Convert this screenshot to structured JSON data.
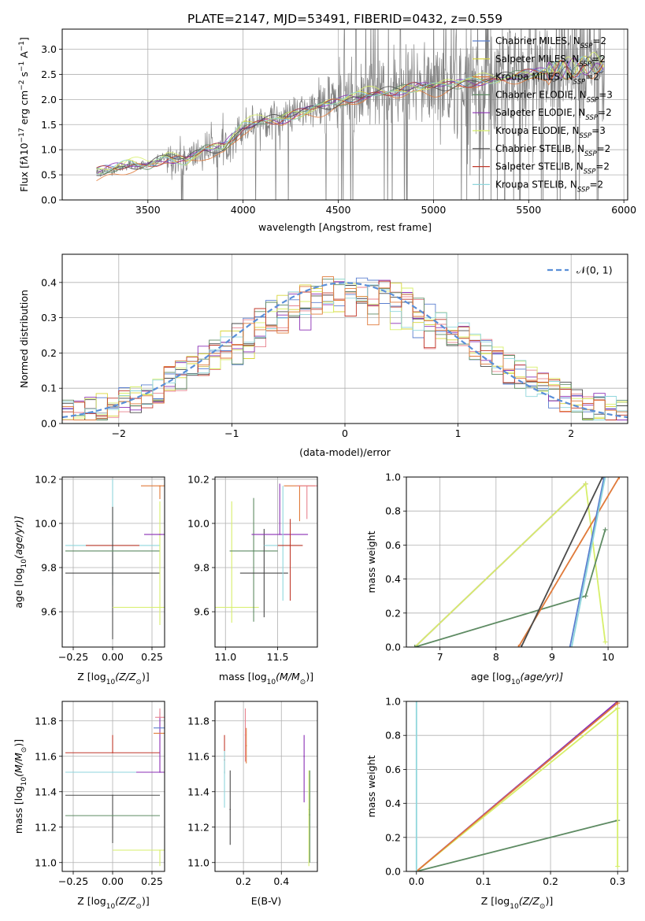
{
  "title": "PLATE=2147, MJD=53491, FIBERID=0432, z=0.559",
  "colors": {
    "c1": "#5a7fcf",
    "c2": "#d8d63a",
    "c3": "#e8838f",
    "c4": "#4a4a4a",
    "c5": "#8b2fb5",
    "c6": "#d7ef6a",
    "c7": "#5e8b63",
    "c8": "#c0392b",
    "c9": "#8fd6dc",
    "c10": "#e07a3a",
    "grey": "#808080"
  },
  "legend_top": [
    {
      "name_main": "Chabrier MILES, N",
      "sub": "SSP",
      "eq": "=2",
      "color": "#5a7fcf"
    },
    {
      "name_main": "Salpeter MILES, N",
      "sub": "SSP",
      "eq": "=2",
      "color": "#d8d63a"
    },
    {
      "name_main": "Kroupa MILES, N",
      "sub": "SSP",
      "eq": "=2",
      "color": "#e07a3a"
    },
    {
      "name_main": "Chabrier ELODIE, N",
      "sub": "SSP",
      "eq": "=3",
      "color": "#5e8b63"
    },
    {
      "name_main": "Salpeter ELODIE, N",
      "sub": "SSP",
      "eq": "=2",
      "color": "#8b2fb5"
    },
    {
      "name_main": "Kroupa ELODIE, N",
      "sub": "SSP",
      "eq": "=3",
      "color": "#d7ef6a"
    },
    {
      "name_main": "Chabrier STELIB, N",
      "sub": "SSP",
      "eq": "=2",
      "color": "#4a4a4a"
    },
    {
      "name_main": "Salpeter STELIB, N",
      "sub": "SSP",
      "eq": "=2",
      "color": "#c0392b"
    },
    {
      "name_main": "Kroupa STELIB, N",
      "sub": "SSP",
      "eq": "=2",
      "color": "#8fd6dc"
    }
  ],
  "legend_hist": {
    "label": "𝒩(0, 1)",
    "color": "#5a8fd8"
  },
  "chart_data": [
    {
      "id": "spectrum",
      "type": "line",
      "xlabel": "wavelength [Angstrom, rest frame]",
      "ylabel_parts": [
        "Flux [f",
        "λ",
        "10",
        "−17",
        " erg cm",
        "−2",
        " s",
        "−1",
        " A",
        "−1",
        "]"
      ],
      "xlim": [
        3050,
        6020
      ],
      "ylim": [
        0,
        3.4
      ],
      "xticks": [
        3500,
        4000,
        4500,
        5000,
        5500,
        6000
      ],
      "yticks": [
        0.0,
        0.5,
        1.0,
        1.5,
        2.0,
        2.5,
        3.0
      ],
      "model_anchor_points": [
        [
          3220,
          0.0
        ],
        [
          3230,
          0.55
        ],
        [
          3300,
          0.6
        ],
        [
          3400,
          0.7
        ],
        [
          3500,
          0.7
        ],
        [
          3600,
          0.85
        ],
        [
          3700,
          0.8
        ],
        [
          3800,
          1.0
        ],
        [
          3900,
          1.05
        ],
        [
          4000,
          1.45
        ],
        [
          4100,
          1.6
        ],
        [
          4200,
          1.6
        ],
        [
          4300,
          1.75
        ],
        [
          4400,
          1.85
        ],
        [
          4500,
          1.95
        ],
        [
          4600,
          2.05
        ],
        [
          4700,
          2.15
        ],
        [
          4800,
          2.15
        ],
        [
          4900,
          2.25
        ],
        [
          5000,
          2.25
        ],
        [
          5100,
          2.3
        ],
        [
          5200,
          2.35
        ],
        [
          5300,
          2.4
        ],
        [
          5400,
          2.45
        ],
        [
          5500,
          2.5
        ],
        [
          5600,
          2.55
        ],
        [
          5700,
          2.6
        ],
        [
          5800,
          2.65
        ],
        [
          5900,
          2.7
        ]
      ]
    },
    {
      "id": "residuals",
      "type": "histogram",
      "xlabel": "(data-model)/error",
      "ylabel": "Normed distribution",
      "xlim": [
        -2.5,
        2.5
      ],
      "ylim": [
        0,
        0.48
      ],
      "xticks": [
        -2,
        -1,
        0,
        1,
        2
      ],
      "yticks": [
        0.0,
        0.1,
        0.2,
        0.3,
        0.4
      ],
      "gaussian": {
        "mean": 0,
        "sigma": 1
      }
    },
    {
      "id": "age_vs_Z",
      "type": "errorbar",
      "xlabel_parts": [
        "Z [log",
        "10",
        "(Z/Z",
        "⊙",
        ")]"
      ],
      "ylabel_parts": [
        "age  [log",
        "10",
        "(age/yr)]"
      ],
      "xlim": [
        -0.32,
        0.33
      ],
      "ylim": [
        9.44,
        10.21
      ],
      "xticks": [
        -0.25,
        0.0,
        0.25
      ],
      "yticks": [
        9.6,
        9.8,
        10.0,
        10.2
      ],
      "points": [
        {
          "x": 0.0,
          "xerr": 0.3,
          "y": 9.9,
          "yerr": [
            0.18,
            0.3
          ],
          "color": "#8fd6dc"
        },
        {
          "x": 0.0,
          "xerr": 0.17,
          "y": 9.9,
          "yerr": [
            0.0,
            0.0
          ],
          "color": "#c0392b"
        },
        {
          "x": 0.0,
          "xerr": 0.3,
          "y": 9.775,
          "yerr": [
            0.3,
            0.3
          ],
          "color": "#4a4a4a"
        },
        {
          "x": 0.0,
          "xerr": 0.3,
          "y": 9.875,
          "yerr": [
            0.0,
            0.0
          ],
          "color": "#5e8b63"
        },
        {
          "x": 0.3,
          "xerr": 0.3,
          "y": 9.62,
          "yerr": [
            0.08,
            0.48
          ],
          "color": "#d7ef6a"
        },
        {
          "x": 0.3,
          "xerr": 0.1,
          "y": 9.95,
          "yerr": [
            0.0,
            0.0
          ],
          "color": "#8b2fb5"
        },
        {
          "x": 0.3,
          "xerr": 0.12,
          "y": 10.17,
          "yerr": [
            0.06,
            0.0
          ],
          "color": "#e07a3a"
        }
      ]
    },
    {
      "id": "age_vs_mass",
      "type": "errorbar",
      "xlabel_parts": [
        "mass [log",
        "10",
        "(M/M",
        "⊙",
        ")]"
      ],
      "xlim": [
        10.9,
        11.88
      ],
      "ylim": [
        9.44,
        10.21
      ],
      "xticks": [
        11.0,
        11.5
      ],
      "yticks": [
        9.6,
        9.8,
        10.0,
        10.2
      ],
      "points": [
        {
          "x": 11.06,
          "xerr": 0.26,
          "y": 9.62,
          "yerr": [
            0.07,
            0.48
          ],
          "color": "#d7ef6a"
        },
        {
          "x": 11.27,
          "xerr": 0.23,
          "y": 9.875,
          "yerr": [
            0.32,
            0.24
          ],
          "color": "#5e8b63"
        },
        {
          "x": 11.37,
          "xerr": 0.23,
          "y": 9.775,
          "yerr": [
            0.2,
            0.2
          ],
          "color": "#4a4a4a"
        },
        {
          "x": 11.52,
          "xerr": 0.27,
          "y": 9.95,
          "yerr": [
            0.0,
            0.23
          ],
          "color": "#8b2fb5"
        },
        {
          "x": 11.55,
          "xerr": 0.18,
          "y": 9.9,
          "yerr": [
            0.25,
            0.27
          ],
          "color": "#8fd6dc"
        },
        {
          "x": 11.62,
          "xerr": 0.12,
          "y": 9.9,
          "yerr": [
            0.25,
            0.12
          ],
          "color": "#c0392b"
        },
        {
          "x": 11.71,
          "xerr": 0.15,
          "y": 10.17,
          "yerr": [
            0.16,
            0.0
          ],
          "color": "#e07a3a"
        },
        {
          "x": 11.78,
          "xerr": 0.1,
          "y": 10.17,
          "yerr": [
            0.15,
            0.0
          ],
          "color": "#e8838f"
        }
      ]
    },
    {
      "id": "massweight_vs_age",
      "type": "line",
      "xlabel_parts": [
        "age  [log",
        "10",
        "(age/yr)]"
      ],
      "ylabel": "mass weight",
      "xlim": [
        6.4,
        10.35
      ],
      "ylim": [
        0,
        1.0
      ],
      "xticks": [
        7,
        8,
        9,
        10
      ],
      "yticks": [
        0.0,
        0.2,
        0.4,
        0.6,
        0.8,
        1.0
      ],
      "series": [
        {
          "x": [
            6.55,
            9.6
          ],
          "y": [
            0.0,
            0.96
          ],
          "color": "#8b2fb5"
        },
        {
          "x": [
            6.55,
            9.6,
            9.95
          ],
          "y": [
            0.0,
            0.96,
            0.03
          ],
          "color": "#d7ef6a"
        },
        {
          "x": [
            6.55,
            9.6,
            9.95
          ],
          "y": [
            0.0,
            0.3,
            0.69
          ],
          "color": "#5e8b63"
        },
        {
          "x": [
            8.4,
            10.2
          ],
          "y": [
            0.0,
            1.0
          ],
          "color": "#e07a3a"
        },
        {
          "x": [
            8.45,
            9.9
          ],
          "y": [
            0.0,
            1.0
          ],
          "color": "#4a4a4a"
        },
        {
          "x": [
            9.32,
            9.93
          ],
          "y": [
            0.0,
            1.0
          ],
          "color": "#5a7fcf"
        },
        {
          "x": [
            9.35,
            9.95
          ],
          "y": [
            0.0,
            1.0
          ],
          "color": "#8fd6dc"
        }
      ]
    },
    {
      "id": "mass_vs_Z",
      "type": "errorbar",
      "xlabel_parts": [
        "Z [log",
        "10",
        "(Z/Z",
        "⊙",
        ")]"
      ],
      "ylabel_parts": [
        "mass [log",
        "10",
        "(M/M",
        "⊙",
        ")]"
      ],
      "xlim": [
        -0.32,
        0.33
      ],
      "ylim": [
        10.95,
        11.91
      ],
      "xticks": [
        -0.25,
        0.0,
        0.25
      ],
      "yticks": [
        11.0,
        11.2,
        11.4,
        11.6,
        11.8
      ],
      "points": [
        {
          "x": 0.0,
          "xerr": 0.3,
          "y": 11.62,
          "yerr": [
            0.0,
            0.1
          ],
          "color": "#c0392b"
        },
        {
          "x": 0.0,
          "xerr": 0.3,
          "y": 11.51,
          "yerr": [
            0.0,
            0.0
          ],
          "color": "#8fd6dc"
        },
        {
          "x": 0.0,
          "xerr": 0.3,
          "y": 11.38,
          "yerr": [
            0.27,
            0.0
          ],
          "color": "#4a4a4a"
        },
        {
          "x": 0.0,
          "xerr": 0.3,
          "y": 11.265,
          "yerr": [
            0.0,
            0.0
          ],
          "color": "#5e8b63"
        },
        {
          "x": 0.3,
          "xerr": 0.3,
          "y": 11.07,
          "yerr": [
            0.09,
            0.0
          ],
          "color": "#d7ef6a"
        },
        {
          "x": 0.3,
          "xerr": 0.15,
          "y": 11.51,
          "yerr": [
            0.0,
            0.34
          ],
          "color": "#8b2fb5"
        },
        {
          "x": 0.3,
          "xerr": 0.04,
          "y": 11.73,
          "yerr": [
            0.0,
            0.0
          ],
          "color": "#e07a3a"
        },
        {
          "x": 0.3,
          "xerr": 0.04,
          "y": 11.76,
          "yerr": [
            0.0,
            0.0
          ],
          "color": "#5a7fcf"
        },
        {
          "x": 0.3,
          "xerr": 0.03,
          "y": 11.82,
          "yerr": [
            0.0,
            0.05
          ],
          "color": "#e8838f"
        }
      ]
    },
    {
      "id": "mass_vs_EBV",
      "type": "errorbar",
      "xlabel": "E(B-V)",
      "xlim": [
        0.05,
        0.59
      ],
      "ylim": [
        10.95,
        11.91
      ],
      "xticks": [
        0.2,
        0.4
      ],
      "yticks": [
        11.0,
        11.2,
        11.4,
        11.6,
        11.8
      ],
      "points": [
        {
          "x": 0.1,
          "y": 11.58,
          "yerr": [
            0.08,
            0.14
          ],
          "color": "#c0392b"
        },
        {
          "x": 0.1,
          "y": 11.51,
          "yerr": [
            0.2,
            0.12
          ],
          "color": "#8fd6dc"
        },
        {
          "x": 0.13,
          "y": 11.3,
          "yerr": [
            0.2,
            0.22
          ],
          "color": "#4a4a4a"
        },
        {
          "x": 0.21,
          "y": 11.72,
          "yerr": [
            0.15,
            0.15
          ],
          "color": "#e8838f"
        },
        {
          "x": 0.215,
          "y": 11.66,
          "yerr": [
            0.1,
            0.1
          ],
          "color": "#e07a3a"
        },
        {
          "x": 0.52,
          "y": 11.6,
          "yerr": [
            0.26,
            0.12
          ],
          "color": "#8b2fb5"
        },
        {
          "x": 0.545,
          "y": 11.3,
          "yerr": [
            0.32,
            0.22
          ],
          "color": "#d7ef6a"
        },
        {
          "x": 0.55,
          "y": 11.27,
          "yerr": [
            0.27,
            0.25
          ],
          "color": "#5e8b63"
        }
      ]
    },
    {
      "id": "massweight_vs_Z",
      "type": "line",
      "xlabel_parts": [
        "Z [log",
        "10",
        "(Z/Z",
        "⊙",
        ")]"
      ],
      "ylabel": "mass weight",
      "xlim": [
        -0.015,
        0.315
      ],
      "ylim": [
        0,
        1.0
      ],
      "xticks": [
        0.0,
        0.1,
        0.2,
        0.3
      ],
      "yticks": [
        0.0,
        0.2,
        0.4,
        0.6,
        0.8,
        1.0
      ],
      "series": [
        {
          "x": [
            0.0,
            0.3
          ],
          "y": [
            0.0,
            1.0
          ],
          "color": "#8b2fb5"
        },
        {
          "x": [
            0.0,
            0.3
          ],
          "y": [
            0.0,
            0.96
          ],
          "color": "#d7ef6a"
        },
        {
          "x": [
            0.0,
            0.3
          ],
          "y": [
            0.0,
            0.3
          ],
          "color": "#5e8b63"
        },
        {
          "x": [
            0.0,
            0.3
          ],
          "y": [
            0.0,
            0.99
          ],
          "color": "#e07a3a"
        },
        {
          "x": [
            0.0,
            0.0
          ],
          "y": [
            0.0,
            1.0
          ],
          "color": "#8fd6dc"
        },
        {
          "x": [
            0.3,
            0.3
          ],
          "y": [
            0.03,
            0.96
          ],
          "color": "#d7ef6a"
        }
      ]
    }
  ]
}
